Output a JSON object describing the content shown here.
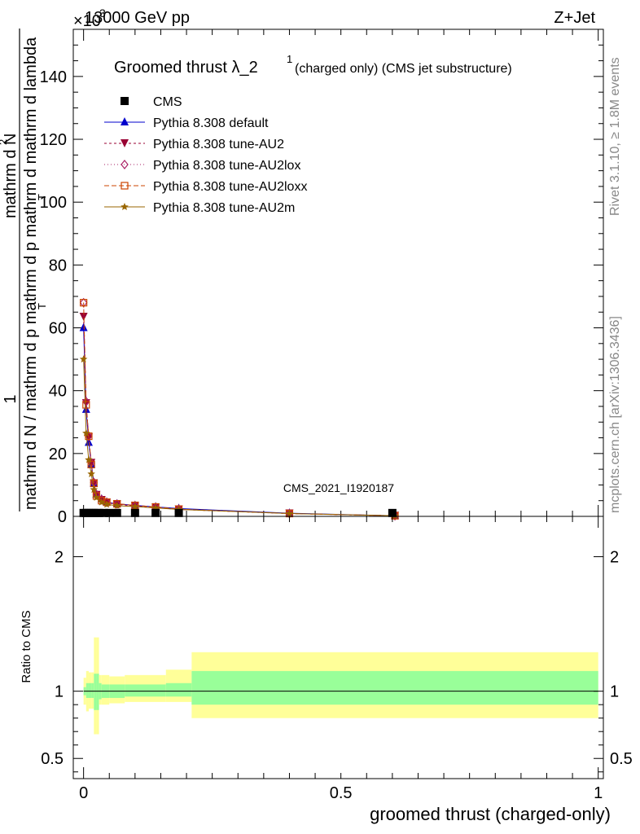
{
  "header": {
    "left": "13000 GeV pp",
    "right": "Z+Jet",
    "exponent": "×10",
    "exponent_power": "3"
  },
  "side": {
    "rivet": "Rivet 3.1.10, ≥ 1.8M events",
    "mcplots": "mcplots.cern.ch [arXiv:1306.3436]"
  },
  "watermark": "CMS_2021_I1920187",
  "chart_data": [
    {
      "type": "line",
      "title": "Groomed thrust",
      "title_lambda": "λ_2",
      "title_power": "1",
      "title_extra": " (charged only) (CMS jet substructure)",
      "ylabel_num": "1",
      "ylabel_den_1": "mathrm d N / mathrm d p",
      "ylabel_den_2": "mathrm d p",
      "ylabel_den_3": "mathrm d",
      "ylabel_den_4": "mathrm d lambda",
      "ylabel_sub": "T",
      "ylabel_top": "mathrm d",
      "ylabel_top_N": "N",
      "ylabel_top_power": "2",
      "ylim": [
        0,
        155
      ],
      "xlim": [
        -0.02,
        1.01
      ],
      "yticks": [
        0,
        20,
        40,
        60,
        80,
        100,
        120,
        140
      ],
      "legend_position": "top-left",
      "data": {
        "name": "CMS",
        "x": [
          0.0,
          0.005,
          0.01,
          0.015,
          0.02,
          0.025,
          0.03,
          0.04,
          0.05,
          0.065,
          0.1,
          0.14,
          0.185,
          0.6
        ],
        "y": [
          0.3,
          0.3,
          0.3,
          0.3,
          0.3,
          0.3,
          0.3,
          0.3,
          0.3,
          0.3,
          0.3,
          0.3,
          0.3,
          0.3
        ]
      },
      "series": [
        {
          "name": "Pythia 8.308 default",
          "color": "#0000cc",
          "marker": "triangle-up",
          "dash": "",
          "x": [
            0.0,
            0.005,
            0.01,
            0.015,
            0.02,
            0.025,
            0.035,
            0.045,
            0.065,
            0.1,
            0.14,
            0.185,
            0.4,
            0.605
          ],
          "y": [
            60,
            34,
            23.5,
            16.5,
            10.5,
            7,
            5.5,
            4.5,
            4,
            3.5,
            3,
            2.5,
            1,
            0.2
          ]
        },
        {
          "name": "Pythia 8.308 tune-AU2",
          "color": "#990033",
          "marker": "triangle-down",
          "dash": "3,3",
          "x": [
            0.0,
            0.005,
            0.01,
            0.015,
            0.02,
            0.025,
            0.035,
            0.045,
            0.065,
            0.1,
            0.14,
            0.185,
            0.4,
            0.605
          ],
          "y": [
            63.5,
            36,
            25,
            17,
            10.5,
            6.8,
            5.2,
            4.4,
            3.8,
            3.3,
            2.8,
            2.2,
            0.9,
            0.2
          ]
        },
        {
          "name": "Pythia 8.308 tune-AU2lox",
          "color": "#aa2266",
          "marker": "diamond",
          "dash": "1,3",
          "x": [
            0.0,
            0.005,
            0.01,
            0.015,
            0.02,
            0.025,
            0.035,
            0.045,
            0.065,
            0.1,
            0.14,
            0.185,
            0.4,
            0.605
          ],
          "y": [
            68,
            36.5,
            25.5,
            17,
            10.8,
            7,
            5.4,
            4.5,
            3.9,
            3.4,
            2.9,
            2.3,
            0.9,
            0.2
          ]
        },
        {
          "name": "Pythia 8.308 tune-AU2loxx",
          "color": "#cc4400",
          "marker": "square-open",
          "dash": "6,3",
          "x": [
            0.0,
            0.005,
            0.01,
            0.015,
            0.02,
            0.025,
            0.035,
            0.045,
            0.065,
            0.1,
            0.14,
            0.185,
            0.4,
            0.605
          ],
          "y": [
            68,
            35.5,
            25.5,
            16.5,
            10.5,
            6.5,
            5,
            4.5,
            4,
            3.5,
            3,
            2.3,
            0.9,
            0.2
          ]
        },
        {
          "name": "Pythia 8.308 tune-AU2m",
          "color": "#996600",
          "marker": "star",
          "dash": "",
          "x": [
            0.0,
            0.005,
            0.01,
            0.015,
            0.02,
            0.025,
            0.035,
            0.045,
            0.065,
            0.1,
            0.14,
            0.185,
            0.4,
            0.605
          ],
          "y": [
            50,
            26.5,
            18,
            13.5,
            8.5,
            6,
            4.5,
            3.8,
            3.4,
            3.1,
            2.7,
            2.2,
            0.9,
            0.2
          ]
        }
      ]
    },
    {
      "type": "area",
      "ylabel": "Ratio to CMS",
      "xlabel": "groomed thrust (charged-only)",
      "ylim": [
        0.35,
        2.3
      ],
      "xlim": [
        -0.02,
        1.01
      ],
      "yticks": [
        0.5,
        1,
        2
      ],
      "ytick_labels": [
        "0.5",
        "1",
        "2"
      ],
      "xticks": [
        0,
        0.5,
        1
      ],
      "xtick_labels": [
        "0",
        "0.5",
        "1"
      ],
      "bands": {
        "edges": [
          0.0,
          0.005,
          0.01,
          0.015,
          0.02,
          0.025,
          0.03,
          0.035,
          0.05,
          0.08,
          0.16,
          0.21,
          1.0
        ],
        "outer_low": [
          0.9,
          0.85,
          0.87,
          0.87,
          0.68,
          0.68,
          0.9,
          0.9,
          0.91,
          0.92,
          0.92,
          0.8
        ],
        "outer_high": [
          1.1,
          1.15,
          1.14,
          1.14,
          1.4,
          1.4,
          1.12,
          1.12,
          1.11,
          1.12,
          1.16,
          1.29
        ],
        "inner_low": [
          0.97,
          0.95,
          0.95,
          0.95,
          0.86,
          0.86,
          0.94,
          0.95,
          0.95,
          0.96,
          0.96,
          0.9
        ],
        "inner_high": [
          1.03,
          1.06,
          1.06,
          1.06,
          1.13,
          1.13,
          1.06,
          1.05,
          1.05,
          1.05,
          1.06,
          1.15
        ]
      },
      "colors": {
        "outer": "#ffff99",
        "inner": "#99ff99"
      }
    }
  ]
}
